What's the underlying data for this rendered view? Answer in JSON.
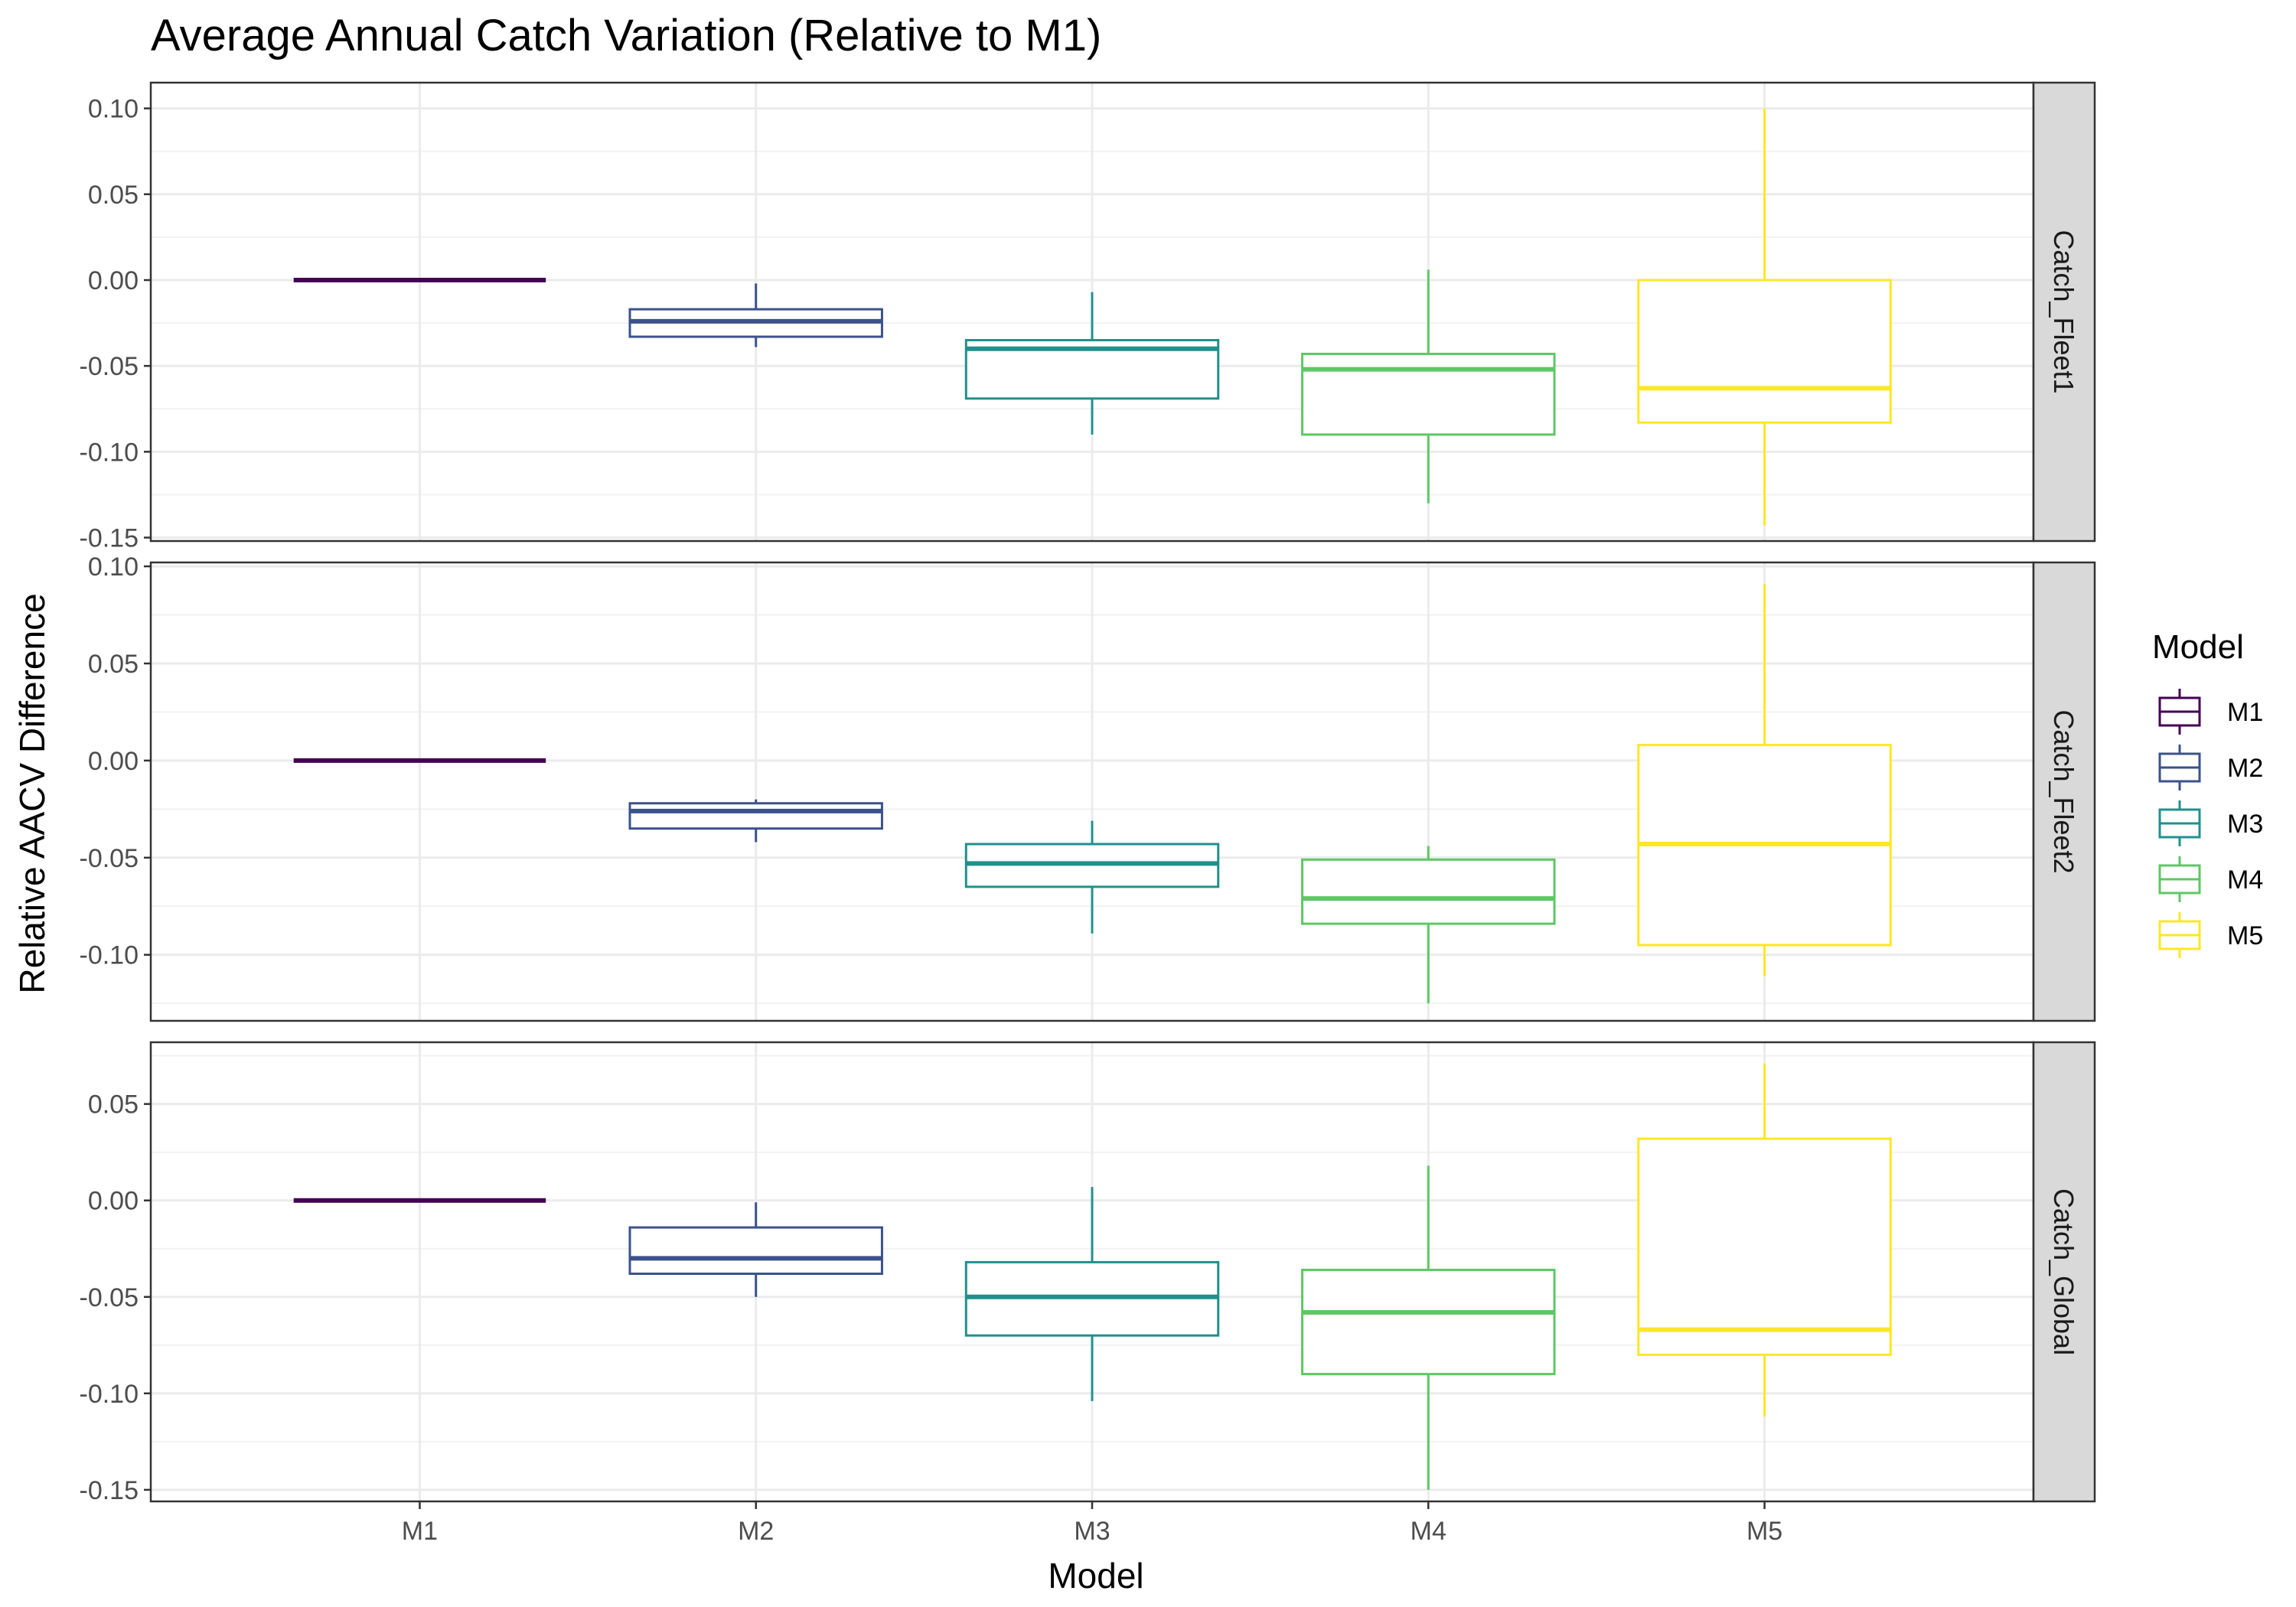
{
  "chart_data": {
    "type": "boxplot",
    "title": "Average Annual Catch Variation (Relative to M1)",
    "xlabel": "Model",
    "ylabel": "Relative AACV Difference",
    "categories": [
      "M1",
      "M2",
      "M3",
      "M4",
      "M5"
    ],
    "colors": {
      "M1": "#440154",
      "M2": "#3b528b",
      "M3": "#21908c",
      "M4": "#5dc863",
      "M5": "#fde725"
    },
    "legend": {
      "title": "Model",
      "position": "right",
      "entries": [
        "M1",
        "M2",
        "M3",
        "M4",
        "M5"
      ]
    },
    "grid": true,
    "facets": [
      {
        "label": "Catch_Fleet1",
        "ylim": [
          -0.152,
          0.115
        ],
        "yticks": [
          "0.10",
          "0.05",
          "0.00",
          "-0.05",
          "-0.10",
          "-0.15"
        ],
        "boxes": [
          {
            "model": "M1",
            "min": 0.0,
            "q1": 0.0,
            "median": 0.0,
            "q3": 0.0,
            "max": 0.0
          },
          {
            "model": "M2",
            "min": -0.039,
            "q1": -0.033,
            "median": -0.024,
            "q3": -0.017,
            "max": -0.002
          },
          {
            "model": "M3",
            "min": -0.09,
            "q1": -0.069,
            "median": -0.04,
            "q3": -0.035,
            "max": -0.007
          },
          {
            "model": "M4",
            "min": -0.13,
            "q1": -0.09,
            "median": -0.052,
            "q3": -0.043,
            "max": 0.006
          },
          {
            "model": "M5",
            "min": -0.143,
            "q1": -0.083,
            "median": -0.063,
            "q3": 0.0,
            "max": 0.1
          }
        ]
      },
      {
        "label": "Catch_Fleet2",
        "ylim": [
          -0.134,
          0.102
        ],
        "yticks": [
          "0.10",
          "0.05",
          "0.00",
          "-0.05",
          "-0.10"
        ],
        "boxes": [
          {
            "model": "M1",
            "min": 0.0,
            "q1": 0.0,
            "median": 0.0,
            "q3": 0.0,
            "max": 0.0
          },
          {
            "model": "M2",
            "min": -0.042,
            "q1": -0.035,
            "median": -0.026,
            "q3": -0.022,
            "max": -0.02
          },
          {
            "model": "M3",
            "min": -0.089,
            "q1": -0.065,
            "median": -0.053,
            "q3": -0.043,
            "max": -0.031
          },
          {
            "model": "M4",
            "min": -0.125,
            "q1": -0.084,
            "median": -0.071,
            "q3": -0.051,
            "max": -0.044
          },
          {
            "model": "M5",
            "min": -0.111,
            "q1": -0.095,
            "median": -0.043,
            "q3": 0.008,
            "max": 0.091
          }
        ]
      },
      {
        "label": "Catch_Global",
        "ylim": [
          -0.156,
          0.082
        ],
        "yticks": [
          "0.05",
          "0.00",
          "-0.05",
          "-0.10",
          "-0.15"
        ],
        "boxes": [
          {
            "model": "M1",
            "min": 0.0,
            "q1": 0.0,
            "median": 0.0,
            "q3": 0.0,
            "max": 0.0
          },
          {
            "model": "M2",
            "min": -0.05,
            "q1": -0.038,
            "median": -0.03,
            "q3": -0.014,
            "max": -0.001
          },
          {
            "model": "M3",
            "min": -0.104,
            "q1": -0.07,
            "median": -0.05,
            "q3": -0.032,
            "max": 0.007
          },
          {
            "model": "M4",
            "min": -0.15,
            "q1": -0.09,
            "median": -0.058,
            "q3": -0.036,
            "max": 0.018
          },
          {
            "model": "M5",
            "min": -0.112,
            "q1": -0.08,
            "median": -0.067,
            "q3": 0.032,
            "max": 0.071
          }
        ]
      }
    ]
  }
}
